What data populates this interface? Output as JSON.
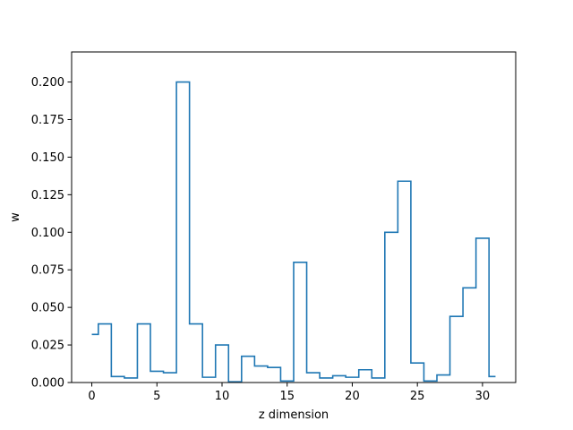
{
  "chart_data": {
    "type": "line",
    "style": "step",
    "title": "",
    "xlabel": "z dimension",
    "ylabel": "w",
    "xlim": [
      -1.55,
      32.55
    ],
    "ylim": [
      0,
      0.22
    ],
    "x_ticks": [
      0,
      5,
      10,
      15,
      20,
      25,
      30
    ],
    "x_tick_labels": [
      "0",
      "5",
      "10",
      "15",
      "20",
      "25",
      "30"
    ],
    "y_ticks": [
      0.0,
      0.025,
      0.05,
      0.075,
      0.1,
      0.125,
      0.15,
      0.175,
      0.2
    ],
    "y_tick_labels": [
      "0.000",
      "0.025",
      "0.050",
      "0.075",
      "0.100",
      "0.125",
      "0.150",
      "0.175",
      "0.200"
    ],
    "grid": false,
    "line_color": "#1f77b4",
    "x": [
      0,
      1,
      2,
      3,
      4,
      5,
      6,
      7,
      8,
      9,
      10,
      11,
      12,
      13,
      14,
      15,
      16,
      17,
      18,
      19,
      20,
      21,
      22,
      23,
      24,
      25,
      26,
      27,
      28,
      29,
      30,
      31
    ],
    "values": [
      0.032,
      0.039,
      0.004,
      0.003,
      0.039,
      0.0075,
      0.0065,
      0.2,
      0.039,
      0.0035,
      0.025,
      0.0005,
      0.0175,
      0.011,
      0.01,
      0.001,
      0.08,
      0.0065,
      0.003,
      0.0045,
      0.0035,
      0.0085,
      0.003,
      0.1,
      0.134,
      0.013,
      0.001,
      0.005,
      0.044,
      0.063,
      0.096,
      0.004
    ]
  }
}
